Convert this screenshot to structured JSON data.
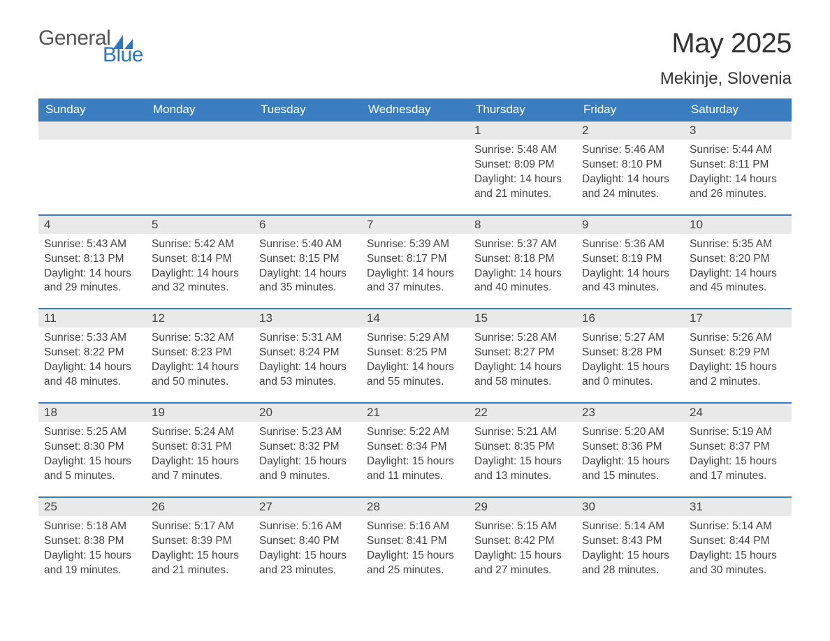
{
  "brand": {
    "word1": "General",
    "word2": "Blue"
  },
  "title": "May 2025",
  "location": "Mekinje, Slovenia",
  "colors": {
    "header_bg": "#3a7ec1",
    "header_text": "#ffffff",
    "daynum_bg": "#e9e9e9",
    "rule": "#3a7ec1",
    "body_text": "#444444",
    "brand_blue": "#2b77c0"
  },
  "day_names": [
    "Sunday",
    "Monday",
    "Tuesday",
    "Wednesday",
    "Thursday",
    "Friday",
    "Saturday"
  ],
  "weeks": [
    [
      {
        "n": "",
        "sunrise": "",
        "sunset": "",
        "daylight": ""
      },
      {
        "n": "",
        "sunrise": "",
        "sunset": "",
        "daylight": ""
      },
      {
        "n": "",
        "sunrise": "",
        "sunset": "",
        "daylight": ""
      },
      {
        "n": "",
        "sunrise": "",
        "sunset": "",
        "daylight": ""
      },
      {
        "n": "1",
        "sunrise": "Sunrise: 5:48 AM",
        "sunset": "Sunset: 8:09 PM",
        "daylight": "Daylight: 14 hours and 21 minutes."
      },
      {
        "n": "2",
        "sunrise": "Sunrise: 5:46 AM",
        "sunset": "Sunset: 8:10 PM",
        "daylight": "Daylight: 14 hours and 24 minutes."
      },
      {
        "n": "3",
        "sunrise": "Sunrise: 5:44 AM",
        "sunset": "Sunset: 8:11 PM",
        "daylight": "Daylight: 14 hours and 26 minutes."
      }
    ],
    [
      {
        "n": "4",
        "sunrise": "Sunrise: 5:43 AM",
        "sunset": "Sunset: 8:13 PM",
        "daylight": "Daylight: 14 hours and 29 minutes."
      },
      {
        "n": "5",
        "sunrise": "Sunrise: 5:42 AM",
        "sunset": "Sunset: 8:14 PM",
        "daylight": "Daylight: 14 hours and 32 minutes."
      },
      {
        "n": "6",
        "sunrise": "Sunrise: 5:40 AM",
        "sunset": "Sunset: 8:15 PM",
        "daylight": "Daylight: 14 hours and 35 minutes."
      },
      {
        "n": "7",
        "sunrise": "Sunrise: 5:39 AM",
        "sunset": "Sunset: 8:17 PM",
        "daylight": "Daylight: 14 hours and 37 minutes."
      },
      {
        "n": "8",
        "sunrise": "Sunrise: 5:37 AM",
        "sunset": "Sunset: 8:18 PM",
        "daylight": "Daylight: 14 hours and 40 minutes."
      },
      {
        "n": "9",
        "sunrise": "Sunrise: 5:36 AM",
        "sunset": "Sunset: 8:19 PM",
        "daylight": "Daylight: 14 hours and 43 minutes."
      },
      {
        "n": "10",
        "sunrise": "Sunrise: 5:35 AM",
        "sunset": "Sunset: 8:20 PM",
        "daylight": "Daylight: 14 hours and 45 minutes."
      }
    ],
    [
      {
        "n": "11",
        "sunrise": "Sunrise: 5:33 AM",
        "sunset": "Sunset: 8:22 PM",
        "daylight": "Daylight: 14 hours and 48 minutes."
      },
      {
        "n": "12",
        "sunrise": "Sunrise: 5:32 AM",
        "sunset": "Sunset: 8:23 PM",
        "daylight": "Daylight: 14 hours and 50 minutes."
      },
      {
        "n": "13",
        "sunrise": "Sunrise: 5:31 AM",
        "sunset": "Sunset: 8:24 PM",
        "daylight": "Daylight: 14 hours and 53 minutes."
      },
      {
        "n": "14",
        "sunrise": "Sunrise: 5:29 AM",
        "sunset": "Sunset: 8:25 PM",
        "daylight": "Daylight: 14 hours and 55 minutes."
      },
      {
        "n": "15",
        "sunrise": "Sunrise: 5:28 AM",
        "sunset": "Sunset: 8:27 PM",
        "daylight": "Daylight: 14 hours and 58 minutes."
      },
      {
        "n": "16",
        "sunrise": "Sunrise: 5:27 AM",
        "sunset": "Sunset: 8:28 PM",
        "daylight": "Daylight: 15 hours and 0 minutes."
      },
      {
        "n": "17",
        "sunrise": "Sunrise: 5:26 AM",
        "sunset": "Sunset: 8:29 PM",
        "daylight": "Daylight: 15 hours and 2 minutes."
      }
    ],
    [
      {
        "n": "18",
        "sunrise": "Sunrise: 5:25 AM",
        "sunset": "Sunset: 8:30 PM",
        "daylight": "Daylight: 15 hours and 5 minutes."
      },
      {
        "n": "19",
        "sunrise": "Sunrise: 5:24 AM",
        "sunset": "Sunset: 8:31 PM",
        "daylight": "Daylight: 15 hours and 7 minutes."
      },
      {
        "n": "20",
        "sunrise": "Sunrise: 5:23 AM",
        "sunset": "Sunset: 8:32 PM",
        "daylight": "Daylight: 15 hours and 9 minutes."
      },
      {
        "n": "21",
        "sunrise": "Sunrise: 5:22 AM",
        "sunset": "Sunset: 8:34 PM",
        "daylight": "Daylight: 15 hours and 11 minutes."
      },
      {
        "n": "22",
        "sunrise": "Sunrise: 5:21 AM",
        "sunset": "Sunset: 8:35 PM",
        "daylight": "Daylight: 15 hours and 13 minutes."
      },
      {
        "n": "23",
        "sunrise": "Sunrise: 5:20 AM",
        "sunset": "Sunset: 8:36 PM",
        "daylight": "Daylight: 15 hours and 15 minutes."
      },
      {
        "n": "24",
        "sunrise": "Sunrise: 5:19 AM",
        "sunset": "Sunset: 8:37 PM",
        "daylight": "Daylight: 15 hours and 17 minutes."
      }
    ],
    [
      {
        "n": "25",
        "sunrise": "Sunrise: 5:18 AM",
        "sunset": "Sunset: 8:38 PM",
        "daylight": "Daylight: 15 hours and 19 minutes."
      },
      {
        "n": "26",
        "sunrise": "Sunrise: 5:17 AM",
        "sunset": "Sunset: 8:39 PM",
        "daylight": "Daylight: 15 hours and 21 minutes."
      },
      {
        "n": "27",
        "sunrise": "Sunrise: 5:16 AM",
        "sunset": "Sunset: 8:40 PM",
        "daylight": "Daylight: 15 hours and 23 minutes."
      },
      {
        "n": "28",
        "sunrise": "Sunrise: 5:16 AM",
        "sunset": "Sunset: 8:41 PM",
        "daylight": "Daylight: 15 hours and 25 minutes."
      },
      {
        "n": "29",
        "sunrise": "Sunrise: 5:15 AM",
        "sunset": "Sunset: 8:42 PM",
        "daylight": "Daylight: 15 hours and 27 minutes."
      },
      {
        "n": "30",
        "sunrise": "Sunrise: 5:14 AM",
        "sunset": "Sunset: 8:43 PM",
        "daylight": "Daylight: 15 hours and 28 minutes."
      },
      {
        "n": "31",
        "sunrise": "Sunrise: 5:14 AM",
        "sunset": "Sunset: 8:44 PM",
        "daylight": "Daylight: 15 hours and 30 minutes."
      }
    ]
  ]
}
